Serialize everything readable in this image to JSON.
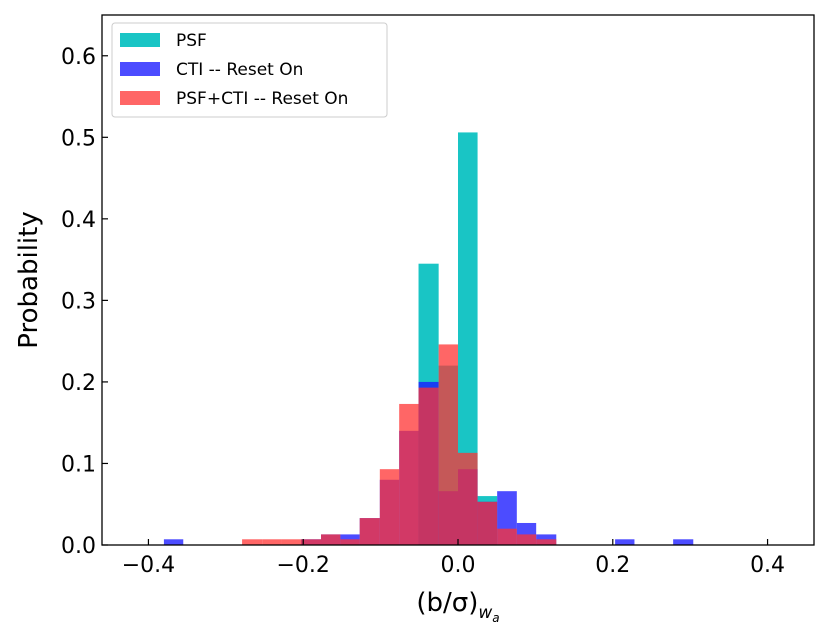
{
  "chart_data": {
    "type": "bar",
    "title": "",
    "xlabel": "(b/σ)",
    "xlabel_subscript": "w",
    "xlabel_subsubscript": "a",
    "ylabel": "Probability",
    "xlim": [
      -0.46,
      0.46
    ],
    "ylim": [
      0.0,
      0.65
    ],
    "bin_width": 0.0253,
    "xticks": [
      -0.4,
      -0.2,
      0.0,
      0.2,
      0.4
    ],
    "xtick_labels": [
      "−0.4",
      "−0.2",
      "0.0",
      "0.2",
      "0.4"
    ],
    "yticks": [
      0.0,
      0.1,
      0.2,
      0.3,
      0.4,
      0.5,
      0.6
    ],
    "ytick_labels": [
      "0.0",
      "0.1",
      "0.2",
      "0.3",
      "0.4",
      "0.5",
      "0.6"
    ],
    "legend_position": "top-left",
    "grid": false,
    "series": [
      {
        "name": "PSF",
        "color": "#00bfbf",
        "opacity": 0.9,
        "bins": [
          {
            "x0": -0.051,
            "x1": -0.025,
            "value": 0.345
          },
          {
            "x0": -0.025,
            "x1": 0.0,
            "value": 0.22
          },
          {
            "x0": 0.0,
            "x1": 0.0253,
            "value": 0.506
          },
          {
            "x0": 0.0253,
            "x1": 0.0506,
            "value": 0.06
          }
        ]
      },
      {
        "name": "CTI -- Reset On",
        "color": "#1a1aff",
        "opacity": 0.78,
        "bins": [
          {
            "x0": -0.38,
            "x1": -0.355,
            "value": 0.007
          },
          {
            "x0": -0.203,
            "x1": -0.177,
            "value": 0.007
          },
          {
            "x0": -0.177,
            "x1": -0.152,
            "value": 0.013
          },
          {
            "x0": -0.152,
            "x1": -0.127,
            "value": 0.013
          },
          {
            "x0": -0.127,
            "x1": -0.101,
            "value": 0.033
          },
          {
            "x0": -0.101,
            "x1": -0.076,
            "value": 0.08
          },
          {
            "x0": -0.076,
            "x1": -0.051,
            "value": 0.14
          },
          {
            "x0": -0.051,
            "x1": -0.025,
            "value": 0.2
          },
          {
            "x0": -0.025,
            "x1": 0.0,
            "value": 0.066
          },
          {
            "x0": 0.0,
            "x1": 0.0253,
            "value": 0.093
          },
          {
            "x0": 0.0253,
            "x1": 0.0506,
            "value": 0.053
          },
          {
            "x0": 0.0506,
            "x1": 0.076,
            "value": 0.066
          },
          {
            "x0": 0.076,
            "x1": 0.101,
            "value": 0.027
          },
          {
            "x0": 0.101,
            "x1": 0.127,
            "value": 0.013
          },
          {
            "x0": 0.203,
            "x1": 0.228,
            "value": 0.007
          },
          {
            "x0": 0.278,
            "x1": 0.304,
            "value": 0.007
          }
        ]
      },
      {
        "name": "PSF+CTI -- Reset On",
        "color": "#ff3333",
        "opacity": 0.75,
        "bins": [
          {
            "x0": -0.279,
            "x1": -0.253,
            "value": 0.007
          },
          {
            "x0": -0.253,
            "x1": -0.228,
            "value": 0.007
          },
          {
            "x0": -0.228,
            "x1": -0.203,
            "value": 0.007
          },
          {
            "x0": -0.203,
            "x1": -0.177,
            "value": 0.007
          },
          {
            "x0": -0.177,
            "x1": -0.152,
            "value": 0.013
          },
          {
            "x0": -0.152,
            "x1": -0.127,
            "value": 0.007
          },
          {
            "x0": -0.127,
            "x1": -0.101,
            "value": 0.033
          },
          {
            "x0": -0.101,
            "x1": -0.076,
            "value": 0.093
          },
          {
            "x0": -0.076,
            "x1": -0.051,
            "value": 0.173
          },
          {
            "x0": -0.051,
            "x1": -0.025,
            "value": 0.193
          },
          {
            "x0": -0.025,
            "x1": 0.0,
            "value": 0.246
          },
          {
            "x0": 0.0,
            "x1": 0.0253,
            "value": 0.113
          },
          {
            "x0": 0.0253,
            "x1": 0.0506,
            "value": 0.053
          },
          {
            "x0": 0.0506,
            "x1": 0.076,
            "value": 0.02
          },
          {
            "x0": 0.076,
            "x1": 0.101,
            "value": 0.013
          },
          {
            "x0": 0.101,
            "x1": 0.127,
            "value": 0.007
          }
        ]
      }
    ]
  }
}
